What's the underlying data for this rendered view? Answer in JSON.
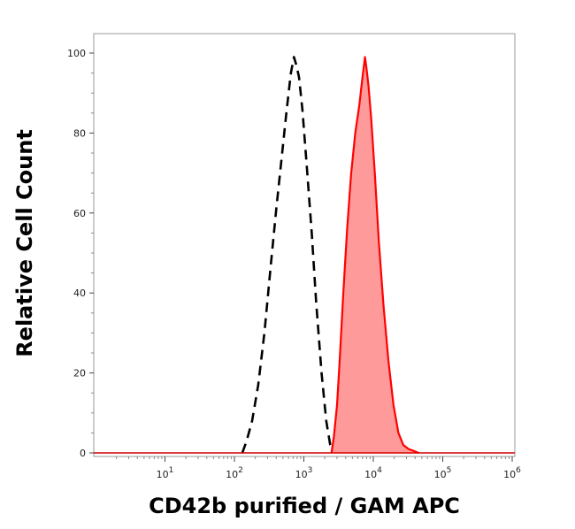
{
  "chart_data": {
    "type": "area",
    "title": "",
    "xlabel": "CD42b purified / GAM APC",
    "ylabel": "Relative Cell Count",
    "xscale": "log",
    "xlim": [
      1,
      1000000
    ],
    "ylim": [
      0,
      100
    ],
    "x_ticks": [
      {
        "value": 10,
        "base": "10",
        "exp": "1"
      },
      {
        "value": 100,
        "base": "10",
        "exp": "2"
      },
      {
        "value": 1000,
        "base": "10",
        "exp": "3"
      },
      {
        "value": 10000,
        "base": "10",
        "exp": "4"
      },
      {
        "value": 100000,
        "base": "10",
        "exp": "5"
      },
      {
        "value": 1000000,
        "base": "10",
        "exp": "6"
      }
    ],
    "y_ticks": [
      0,
      20,
      40,
      60,
      80,
      100
    ],
    "grid": false,
    "legend": "none",
    "series": [
      {
        "style": "dashed-line",
        "color": "#000000",
        "x": [
          130,
          150,
          180,
          220,
          270,
          330,
          400,
          480,
          560,
          650,
          720,
          780,
          850,
          950,
          1100,
          1300,
          1500,
          1800,
          2100,
          2400,
          2700
        ],
        "y": [
          0,
          3,
          8,
          17,
          30,
          46,
          61,
          74,
          85,
          95,
          99,
          97,
          94,
          86,
          72,
          55,
          38,
          20,
          8,
          2,
          0
        ]
      },
      {
        "style": "filled-area",
        "color": "#ff0000",
        "fill": "#ff9a9a",
        "x": [
          2500,
          2700,
          3000,
          3300,
          3700,
          4200,
          4800,
          5500,
          6300,
          7000,
          7600,
          8000,
          8500,
          9300,
          10500,
          12000,
          14000,
          16500,
          19500,
          23000,
          27000,
          32000,
          38000,
          45000
        ],
        "y": [
          0,
          4,
          12,
          24,
          40,
          56,
          70,
          80,
          87,
          94,
          99,
          96,
          92,
          84,
          70,
          53,
          37,
          23,
          12,
          5,
          2,
          1,
          0.5,
          0
        ]
      }
    ]
  }
}
